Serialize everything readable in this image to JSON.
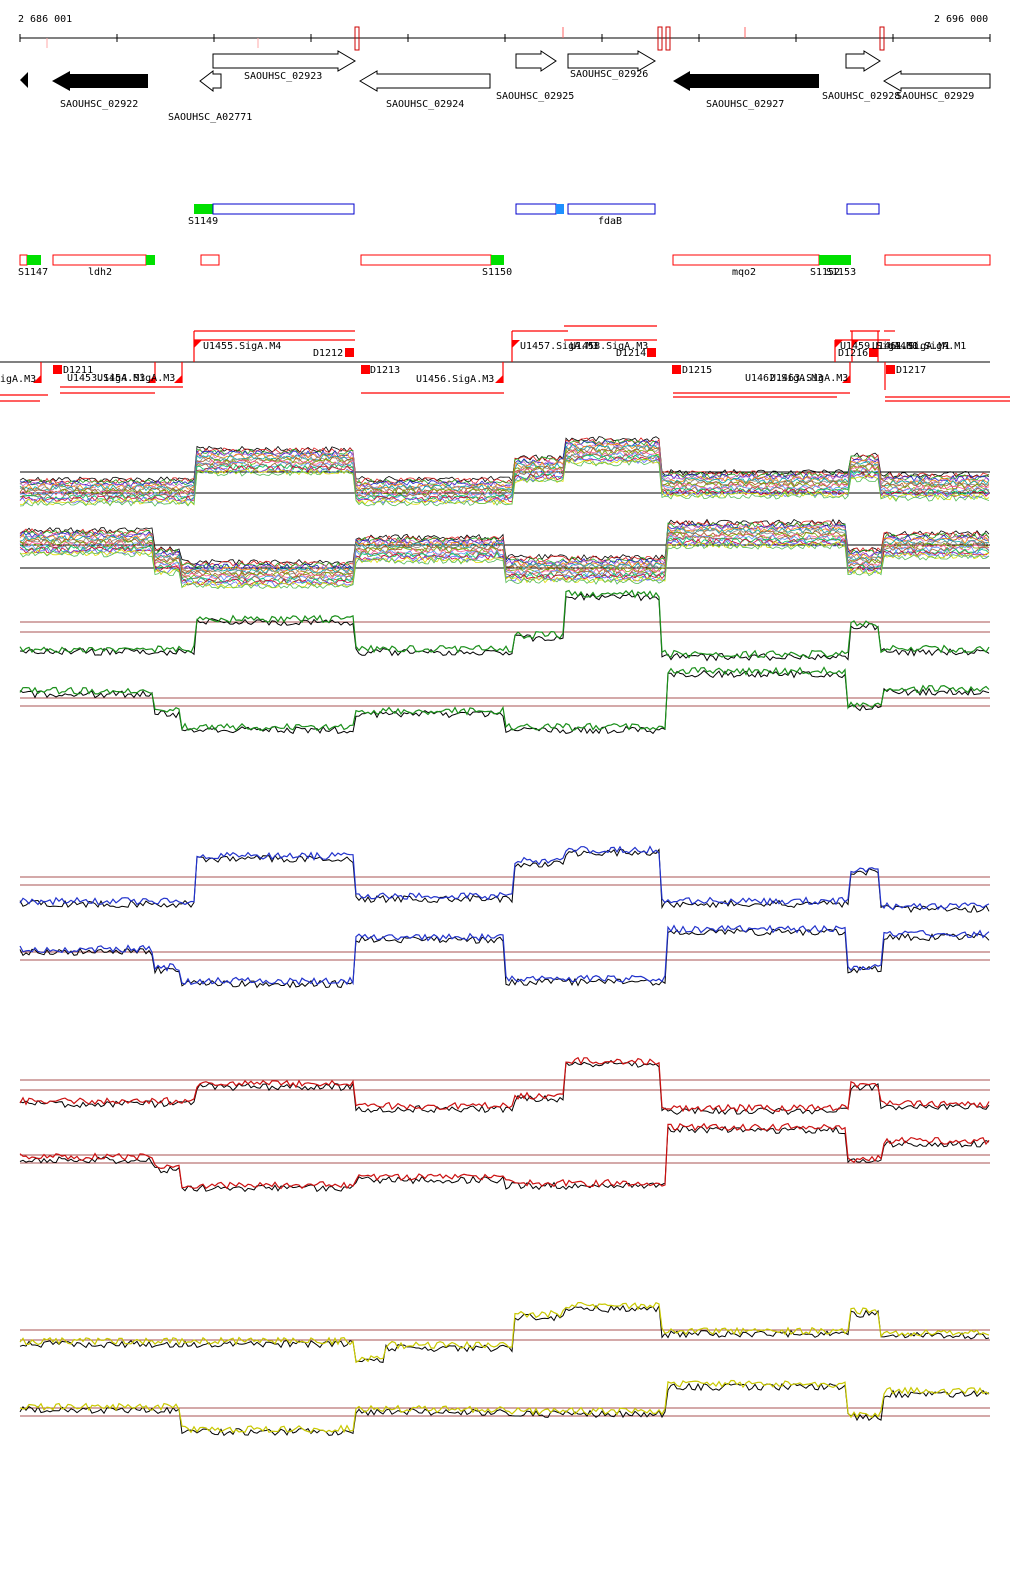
{
  "coords": {
    "start_label": "2 686 001",
    "end_label": "2 696 000"
  },
  "colors": {
    "gene_fill_dark": "#000000",
    "gene_fill_light": "#ffffff",
    "feature_green": "#00e000",
    "feature_blue": "#0000cc",
    "feature_lightblue": "#1e90ff",
    "feature_red": "#ff0000",
    "threshold_brown": "#8b1a1a",
    "track_green": "#1a8f1a",
    "track_blue": "#2233cc",
    "track_red": "#cc1111",
    "track_yellow": "#c8c800"
  },
  "genes": [
    {
      "label": "SAOUHSC_02922",
      "strand": "-",
      "filled": true
    },
    {
      "label": "SAOUHSC_A02771",
      "strand": "-",
      "filled": false
    },
    {
      "label": "SAOUHSC_02923",
      "strand": "+",
      "filled": false
    },
    {
      "label": "SAOUHSC_02924",
      "strand": "-",
      "filled": false
    },
    {
      "label": "SAOUHSC_02925",
      "strand": "+",
      "filled": false
    },
    {
      "label": "SAOUHSC_02926",
      "strand": "+",
      "filled": false
    },
    {
      "label": "SAOUHSC_02927",
      "strand": "-",
      "filled": true
    },
    {
      "label": "SAOUHSC_02928",
      "strand": "+",
      "filled": false
    },
    {
      "label": "SAOUHSC_02929",
      "strand": "-",
      "filled": false
    }
  ],
  "features_plus": [
    {
      "label": "S1149"
    },
    {
      "label": "fdaB"
    }
  ],
  "features_minus": [
    {
      "label": "S1147"
    },
    {
      "label": "ldh2"
    },
    {
      "label": "S1150"
    },
    {
      "label": "mqo2"
    },
    {
      "label": "S1152"
    },
    {
      "label": "S1153"
    }
  ],
  "promoters_top": [
    {
      "label": "U1455.SigA.M4"
    },
    {
      "label": "D1212"
    },
    {
      "label": "U1457.SigA.M3"
    },
    {
      "label": "U1458.SigA.M3"
    },
    {
      "label": "D1214"
    },
    {
      "label": "U1459.SigA.M1"
    },
    {
      "label": "U1460.SigA.M1"
    },
    {
      "label": "D1216"
    },
    {
      "label": "U1461.SigA.M1"
    }
  ],
  "promoters_bottom": [
    {
      "label": "igA.M3"
    },
    {
      "label": "D1211"
    },
    {
      "label": "U1453.SigA.M3"
    },
    {
      "label": "U1454.SigA.M3"
    },
    {
      "label": "D1213"
    },
    {
      "label": "U1456.SigA.M3"
    },
    {
      "label": "D1215"
    },
    {
      "label": "U1462.SigA.M3"
    },
    {
      "label": "U1463.SigA.M3"
    },
    {
      "label": "D1217"
    }
  ]
}
